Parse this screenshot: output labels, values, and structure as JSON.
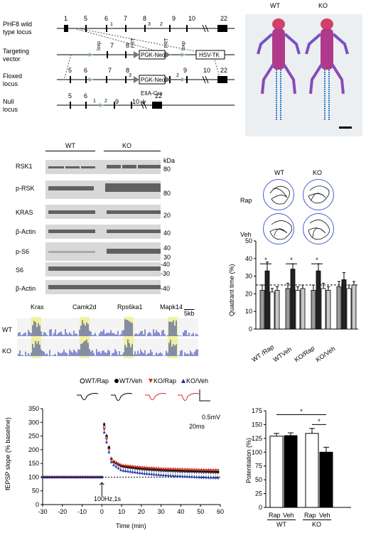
{
  "locus": {
    "rows": [
      "PHF8 wild type locus",
      "Targeting vector",
      "Floxed locus",
      "Null locus"
    ],
    "row_lines": [
      [
        "PHF8 wild",
        "type locus"
      ],
      [
        "Targeting",
        "vector"
      ],
      [
        "Floxed",
        "locus"
      ],
      [
        "Null",
        "locus"
      ]
    ],
    "wt_exons": [
      "1",
      "5",
      "6",
      "1",
      "7",
      "8",
      "3",
      "2",
      "9",
      "10",
      "22"
    ],
    "tv_labels": [
      "loxp",
      "7",
      "8",
      "FRT",
      "PGK-Neo",
      "FRT",
      "loxp",
      "HSV-TK"
    ],
    "floxed_labels": [
      "5",
      "6",
      "7",
      "8",
      "3",
      "PGK-Neo",
      "2",
      "9",
      "10",
      "22"
    ],
    "null_labels": [
      "5",
      "6",
      "1",
      "2",
      "9",
      "10",
      "EIIA-Cre",
      "22"
    ]
  },
  "skeleton": {
    "wt_label": "WT",
    "ko_label": "KO"
  },
  "western": {
    "wt_label": "WT",
    "ko_label": "KO",
    "kda": "kDa",
    "rows": [
      {
        "name": "RSK1",
        "mw": "80"
      },
      {
        "name": "p-RSK",
        "mw": "80"
      },
      {
        "name": "KRAS",
        "mw": "20"
      },
      {
        "name": "β-Actin",
        "mw": "40"
      },
      {
        "name": "p-S6",
        "mw": "40 30"
      },
      {
        "name": "S6",
        "mw": "-40 -30"
      },
      {
        "name": "β-Actin",
        "mw": "-40"
      }
    ]
  },
  "tracks": {
    "genes": [
      "Kras",
      "Camk2d",
      "Rps6ka1",
      "Mapk14"
    ],
    "scale": "5kb",
    "rows": [
      "WT",
      "KO"
    ]
  },
  "swim": {
    "cols": [
      "WT",
      "KO"
    ],
    "rows": [
      "Rap",
      "Veh"
    ]
  },
  "chart_quadrant": {
    "type": "bar",
    "ylabel": "Quadrant time (%)",
    "yticks": [
      "0",
      "10",
      "20",
      "30",
      "40",
      "50"
    ],
    "ylim": [
      0,
      50
    ],
    "chance_line": 25,
    "groups": [
      "WT /Rap",
      "WTVeh",
      "KO/Rap",
      "KO/Veh"
    ],
    "values": [
      [
        22,
        33,
        21,
        22
      ],
      [
        23,
        34,
        22,
        23
      ],
      [
        22,
        33,
        23,
        22
      ],
      [
        24,
        28,
        23,
        25
      ]
    ],
    "errors": [
      [
        3,
        5,
        2,
        2
      ],
      [
        3,
        3,
        2,
        2
      ],
      [
        3,
        4,
        3,
        2
      ],
      [
        3,
        4,
        2,
        2
      ]
    ],
    "bar_colors": [
      "#9a9a9a",
      "#222222",
      "#ffffff",
      "#c8c8c8"
    ],
    "signif": [
      "*",
      "*",
      "*"
    ]
  },
  "fepsp": {
    "legend": [
      "WT/Rap",
      "WT/Veh",
      "KO/Rap",
      "KO/Veh"
    ],
    "legend_colors": [
      "#000000",
      "#000000",
      "#d42a1e",
      "#1b2fa8"
    ],
    "scalebar": {
      "v": "0.5mV",
      "t": "20ms"
    },
    "ylabel": "fEPSP slope (% baseline)",
    "xlabel": "Time (min)",
    "stim": "100Hz,1s",
    "yticks": [
      "0",
      "50",
      "100",
      "150",
      "200",
      "250",
      "300",
      "350"
    ],
    "xticks": [
      "-30",
      "-20",
      "-10",
      "0",
      "10",
      "20",
      "30",
      "40",
      "50",
      "60"
    ]
  },
  "chart_potentiation": {
    "type": "bar",
    "ylabel": "Potentiation (%)",
    "yticks": [
      "0",
      "25",
      "50",
      "75",
      "100",
      "125",
      "150",
      "175"
    ],
    "ylim": [
      0,
      175
    ],
    "categories": [
      "Rap",
      "Veh",
      "Rap",
      "Veh"
    ],
    "groups": [
      "WT",
      "KO"
    ],
    "values": [
      129,
      130,
      134,
      100
    ],
    "errors": [
      5,
      5,
      9,
      9
    ],
    "colors": [
      "#ffffff",
      "#000000",
      "#ffffff",
      "#000000"
    ],
    "signif": [
      "*",
      "*"
    ]
  },
  "chart_data": [
    {
      "type": "bar",
      "ylabel": "Quadrant time (%)",
      "categories": [
        "WT /Rap",
        "WTVeh",
        "KO/Rap",
        "KO/Veh"
      ],
      "series": [
        {
          "values": [
            22,
            23,
            22,
            24
          ]
        },
        {
          "values": [
            33,
            34,
            33,
            28
          ]
        },
        {
          "values": [
            21,
            22,
            23,
            23
          ]
        },
        {
          "values": [
            22,
            23,
            22,
            25
          ]
        }
      ],
      "ylim": [
        0,
        50
      ]
    },
    {
      "type": "line",
      "xlabel": "Time (min)",
      "ylabel": "fEPSP slope (% baseline)",
      "series": [
        {
          "name": "WT/Rap",
          "x": [
            -30,
            0,
            1,
            5,
            10,
            20,
            30,
            40,
            50,
            60
          ],
          "y": [
            100,
            100,
            290,
            160,
            140,
            130,
            125,
            122,
            120,
            118
          ]
        },
        {
          "name": "WT/Veh",
          "x": [
            -30,
            0,
            1,
            5,
            10,
            20,
            30,
            40,
            50,
            60
          ],
          "y": [
            100,
            100,
            300,
            160,
            140,
            132,
            127,
            124,
            122,
            120
          ]
        },
        {
          "name": "KO/Rap",
          "x": [
            -30,
            0,
            1,
            5,
            10,
            20,
            30,
            40,
            50,
            60
          ],
          "y": [
            100,
            100,
            280,
            160,
            142,
            135,
            130,
            128,
            126,
            125
          ]
        },
        {
          "name": "KO/Veh",
          "x": [
            -30,
            0,
            1,
            5,
            10,
            20,
            30,
            40,
            50,
            60
          ],
          "y": [
            100,
            100,
            270,
            150,
            125,
            115,
            108,
            104,
            100,
            98
          ]
        }
      ],
      "xlim": [
        -30,
        60
      ],
      "ylim": [
        0,
        350
      ]
    },
    {
      "type": "bar",
      "ylabel": "Potentiation (%)",
      "categories": [
        "Rap",
        "Veh",
        "Rap",
        "Veh"
      ],
      "values": [
        129,
        130,
        134,
        100
      ],
      "ylim": [
        0,
        175
      ]
    }
  ]
}
